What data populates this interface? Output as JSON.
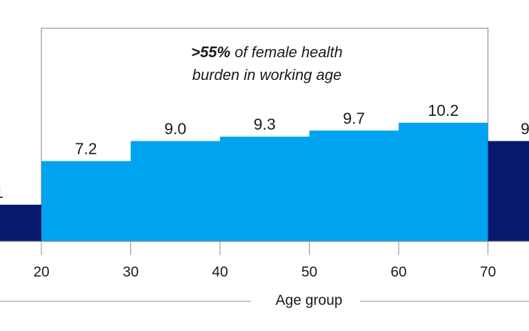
{
  "chart_data": {
    "type": "bar",
    "xlabel": "Age group",
    "ylabel": "",
    "x_ticks": [
      "20",
      "30",
      "40",
      "50",
      "60",
      "70"
    ],
    "bins": [
      {
        "from": 10,
        "to": 20,
        "value": 2.1,
        "label": "1",
        "highlight": false
      },
      {
        "from": 20,
        "to": 30,
        "value": 4.6,
        "label": "7.2",
        "highlight": true
      },
      {
        "from": 30,
        "to": 40,
        "value": 5.75,
        "label": "9.0",
        "highlight": true
      },
      {
        "from": 40,
        "to": 50,
        "value": 6.0,
        "label": "9.3",
        "highlight": true
      },
      {
        "from": 50,
        "to": 60,
        "value": 6.35,
        "label": "9.7",
        "highlight": true
      },
      {
        "from": 60,
        "to": 70,
        "value": 6.8,
        "label": "10.2",
        "highlight": true
      },
      {
        "from": 70,
        "to": 80,
        "value": 5.75,
        "label": "9",
        "highlight": false
      }
    ],
    "annotation": {
      "bold": ">55%",
      "line1_rest": " of female health",
      "line2": "burden in working age"
    },
    "colors": {
      "highlight": "#00a3ef",
      "base": "#08196e",
      "box": "#9a9a9a",
      "axis": "#8a8a8a"
    }
  }
}
